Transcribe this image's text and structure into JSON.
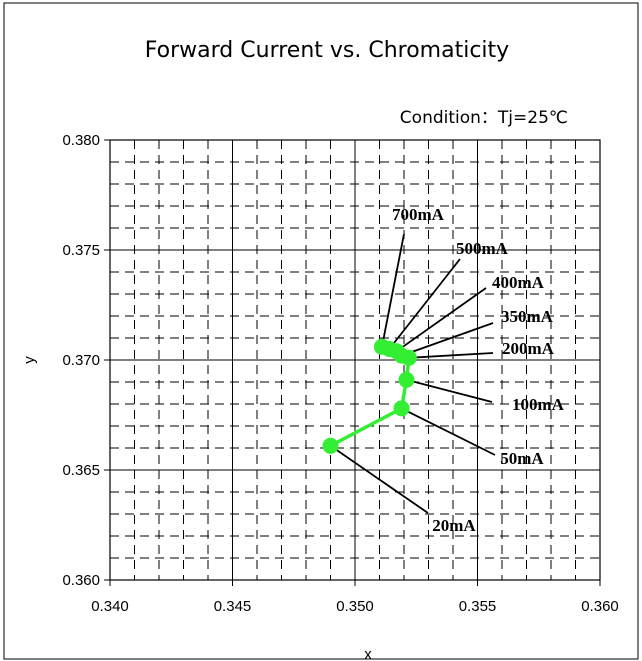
{
  "chart_data": {
    "type": "scatter",
    "title": "Forward Current vs. Chromaticity",
    "annotation": "Condition：Tj=25℃",
    "xlabel": "x",
    "ylabel": "y",
    "xlim": [
      0.34,
      0.36
    ],
    "ylim": [
      0.36,
      0.38
    ],
    "x_ticks": [
      "0.340",
      "0.345",
      "0.350",
      "0.355",
      "0.360"
    ],
    "y_ticks": [
      "0.360",
      "0.365",
      "0.370",
      "0.375",
      "0.380"
    ],
    "x_tick_values": [
      0.34,
      0.345,
      0.35,
      0.355,
      0.36
    ],
    "y_tick_values": [
      0.36,
      0.365,
      0.37,
      0.375,
      0.38
    ],
    "grid": true,
    "series_color": "#33ee33",
    "series": [
      {
        "points": [
          {
            "label": "20mA",
            "x": 0.349,
            "y": 0.3661
          },
          {
            "label": "50mA",
            "x": 0.3519,
            "y": 0.3678
          },
          {
            "label": "100mA",
            "x": 0.3521,
            "y": 0.3691
          },
          {
            "label": "200mA",
            "x": 0.3522,
            "y": 0.3701
          },
          {
            "label": "350mA",
            "x": 0.3519,
            "y": 0.3702
          },
          {
            "label": "400mA",
            "x": 0.3517,
            "y": 0.3704
          },
          {
            "label": "500mA",
            "x": 0.3514,
            "y": 0.3705
          },
          {
            "label": "700mA",
            "x": 0.3511,
            "y": 0.3706
          }
        ]
      }
    ],
    "point_labels": [
      "20mA",
      "50mA",
      "100mA",
      "200mA",
      "350mA",
      "400mA",
      "500mA",
      "700mA"
    ]
  }
}
